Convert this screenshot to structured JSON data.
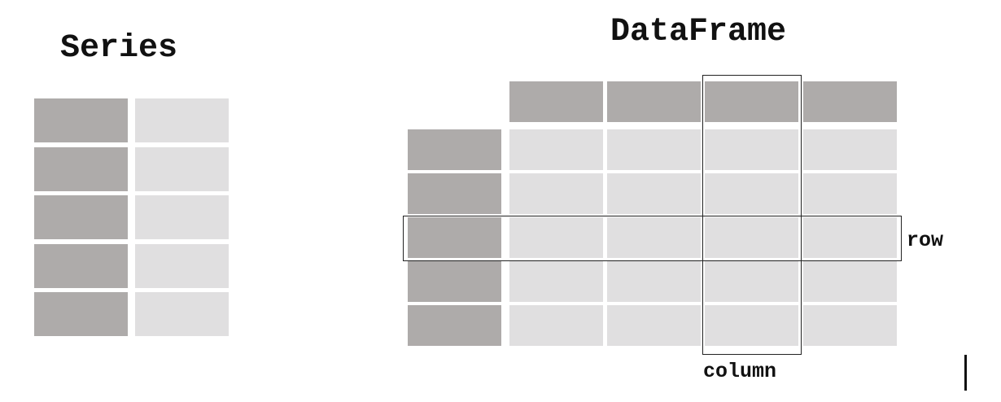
{
  "series": {
    "title": "Series",
    "rows": 5,
    "index_color": "#aeabaa",
    "value_color": "#e0dfe0"
  },
  "dataframe": {
    "title": "DataFrame",
    "rows": 5,
    "columns": 4,
    "header_color": "#aeabaa",
    "index_color": "#aeabaa",
    "cell_color": "#e0dfe0",
    "highlighted_row": 3,
    "highlighted_column": 3,
    "row_label": "row",
    "column_label": "column"
  }
}
